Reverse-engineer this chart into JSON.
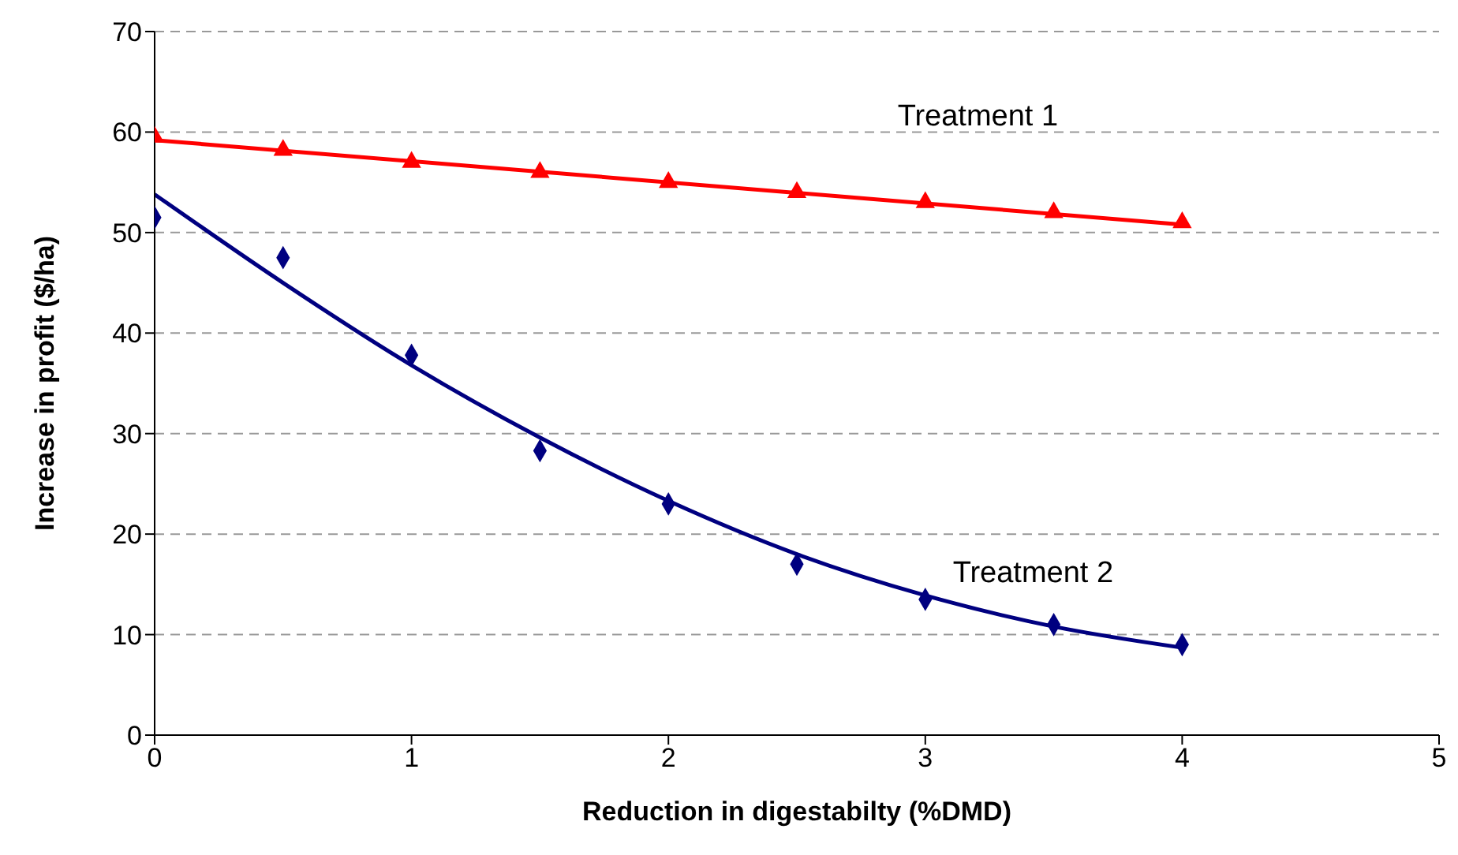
{
  "chart_data": {
    "type": "scatter",
    "xlabel": "Reduction in digestabilty (%DMD)",
    "ylabel": "Increase in profit ($/ha)",
    "xlim": [
      0,
      5
    ],
    "xticks": [
      0,
      1,
      2,
      3,
      4,
      5
    ],
    "ylim": [
      0,
      70
    ],
    "yticks": [
      0,
      10,
      20,
      30,
      40,
      50,
      60,
      70
    ],
    "grid": "y",
    "series": [
      {
        "name": "Treatment 1",
        "marker": "triangle",
        "color": "#ff0000",
        "x": [
          0,
          0.5,
          1,
          1.5,
          2,
          2.5,
          3,
          3.5,
          4
        ],
        "values": [
          59.5,
          58.2,
          57,
          56,
          55,
          54,
          53,
          52,
          51
        ]
      },
      {
        "name": "Treatment 2",
        "marker": "diamond",
        "color": "#000080",
        "x": [
          0,
          0.5,
          1,
          1.5,
          2,
          2.5,
          3,
          3.5,
          4
        ],
        "values": [
          51.5,
          47.5,
          37.8,
          28.3,
          23,
          17,
          13.5,
          11,
          9
        ]
      },
      {
        "type": "line",
        "marker": "none",
        "line_style": "solid",
        "color": "#ff0000",
        "x": [
          0,
          4
        ],
        "values": [
          59.2,
          50.8
        ]
      },
      {
        "type": "line",
        "marker": "none",
        "line_style": "solid",
        "color": "#000080",
        "x": [
          0,
          0.5,
          1,
          1.5,
          2,
          2.5,
          3,
          3.5,
          4
        ],
        "values": [
          53.8,
          45,
          36.8,
          29.6,
          23.3,
          18,
          13.9,
          10.8,
          8.7
        ]
      }
    ]
  }
}
